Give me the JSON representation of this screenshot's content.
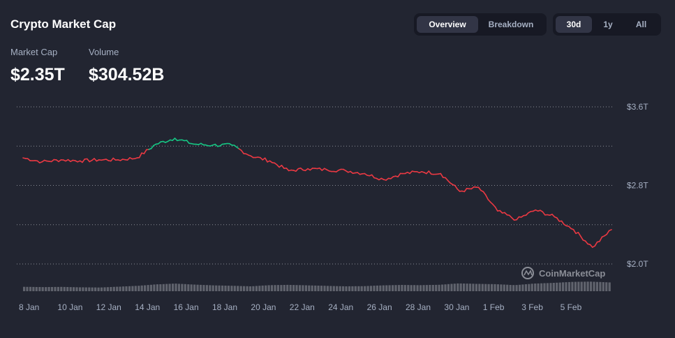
{
  "header": {
    "title": "Crypto Market Cap"
  },
  "stats": {
    "market_cap_label": "Market Cap",
    "market_cap_value": "$2.35T",
    "volume_label": "Volume",
    "volume_value": "$304.52B"
  },
  "view_tabs": [
    "Overview",
    "Breakdown"
  ],
  "range_tabs": [
    "30d",
    "1y",
    "All"
  ],
  "active_view": "Overview",
  "active_range": "30d",
  "watermark": "CoinMarketCap",
  "colors": {
    "up": "#16c784",
    "down": "#ea3943",
    "volume": "#6b6e78"
  },
  "chart_data": {
    "type": "line",
    "x_ticks": [
      "8 Jan",
      "10 Jan",
      "12 Jan",
      "14 Jan",
      "16 Jan",
      "18 Jan",
      "20 Jan",
      "22 Jan",
      "24 Jan",
      "26 Jan",
      "28 Jan",
      "30 Jan",
      "1 Feb",
      "3 Feb",
      "5 Feb"
    ],
    "y_ticks": [
      "$3.6T",
      "$2.8T",
      "$2.0T"
    ],
    "ylim": [
      2.0,
      3.6
    ],
    "baseline": 3.17,
    "series": [
      {
        "x": [
          "7 Jan",
          "8 Jan",
          "9 Jan",
          "10 Jan",
          "11 Jan",
          "12 Jan",
          "13 Jan",
          "14 Jan",
          "15 Jan",
          "16 Jan",
          "17 Jan",
          "18 Jan",
          "19 Jan",
          "20 Jan",
          "21 Jan",
          "22 Jan",
          "23 Jan",
          "24 Jan",
          "25 Jan",
          "26 Jan",
          "27 Jan",
          "28 Jan",
          "29 Jan",
          "30 Jan",
          "31 Jan",
          "1 Feb",
          "2 Feb",
          "3 Feb",
          "4 Feb",
          "5 Feb",
          "6 Feb",
          "7 Feb"
        ],
        "values": [
          3.08,
          3.04,
          3.06,
          3.05,
          3.06,
          3.06,
          3.08,
          3.22,
          3.28,
          3.22,
          3.21,
          3.21,
          3.1,
          3.05,
          2.95,
          2.97,
          2.96,
          2.95,
          2.92,
          2.86,
          2.92,
          2.94,
          2.92,
          2.74,
          2.78,
          2.54,
          2.45,
          2.55,
          2.48,
          2.35,
          2.17,
          2.35
        ]
      }
    ],
    "volume": [
      0.45,
      0.42,
      0.44,
      0.4,
      0.38,
      0.46,
      0.55,
      0.7,
      0.78,
      0.68,
      0.6,
      0.56,
      0.5,
      0.62,
      0.65,
      0.6,
      0.55,
      0.5,
      0.52,
      0.6,
      0.64,
      0.62,
      0.66,
      0.8,
      0.75,
      0.72,
      0.62,
      0.78,
      0.85,
      0.95,
      0.98,
      0.9
    ]
  }
}
